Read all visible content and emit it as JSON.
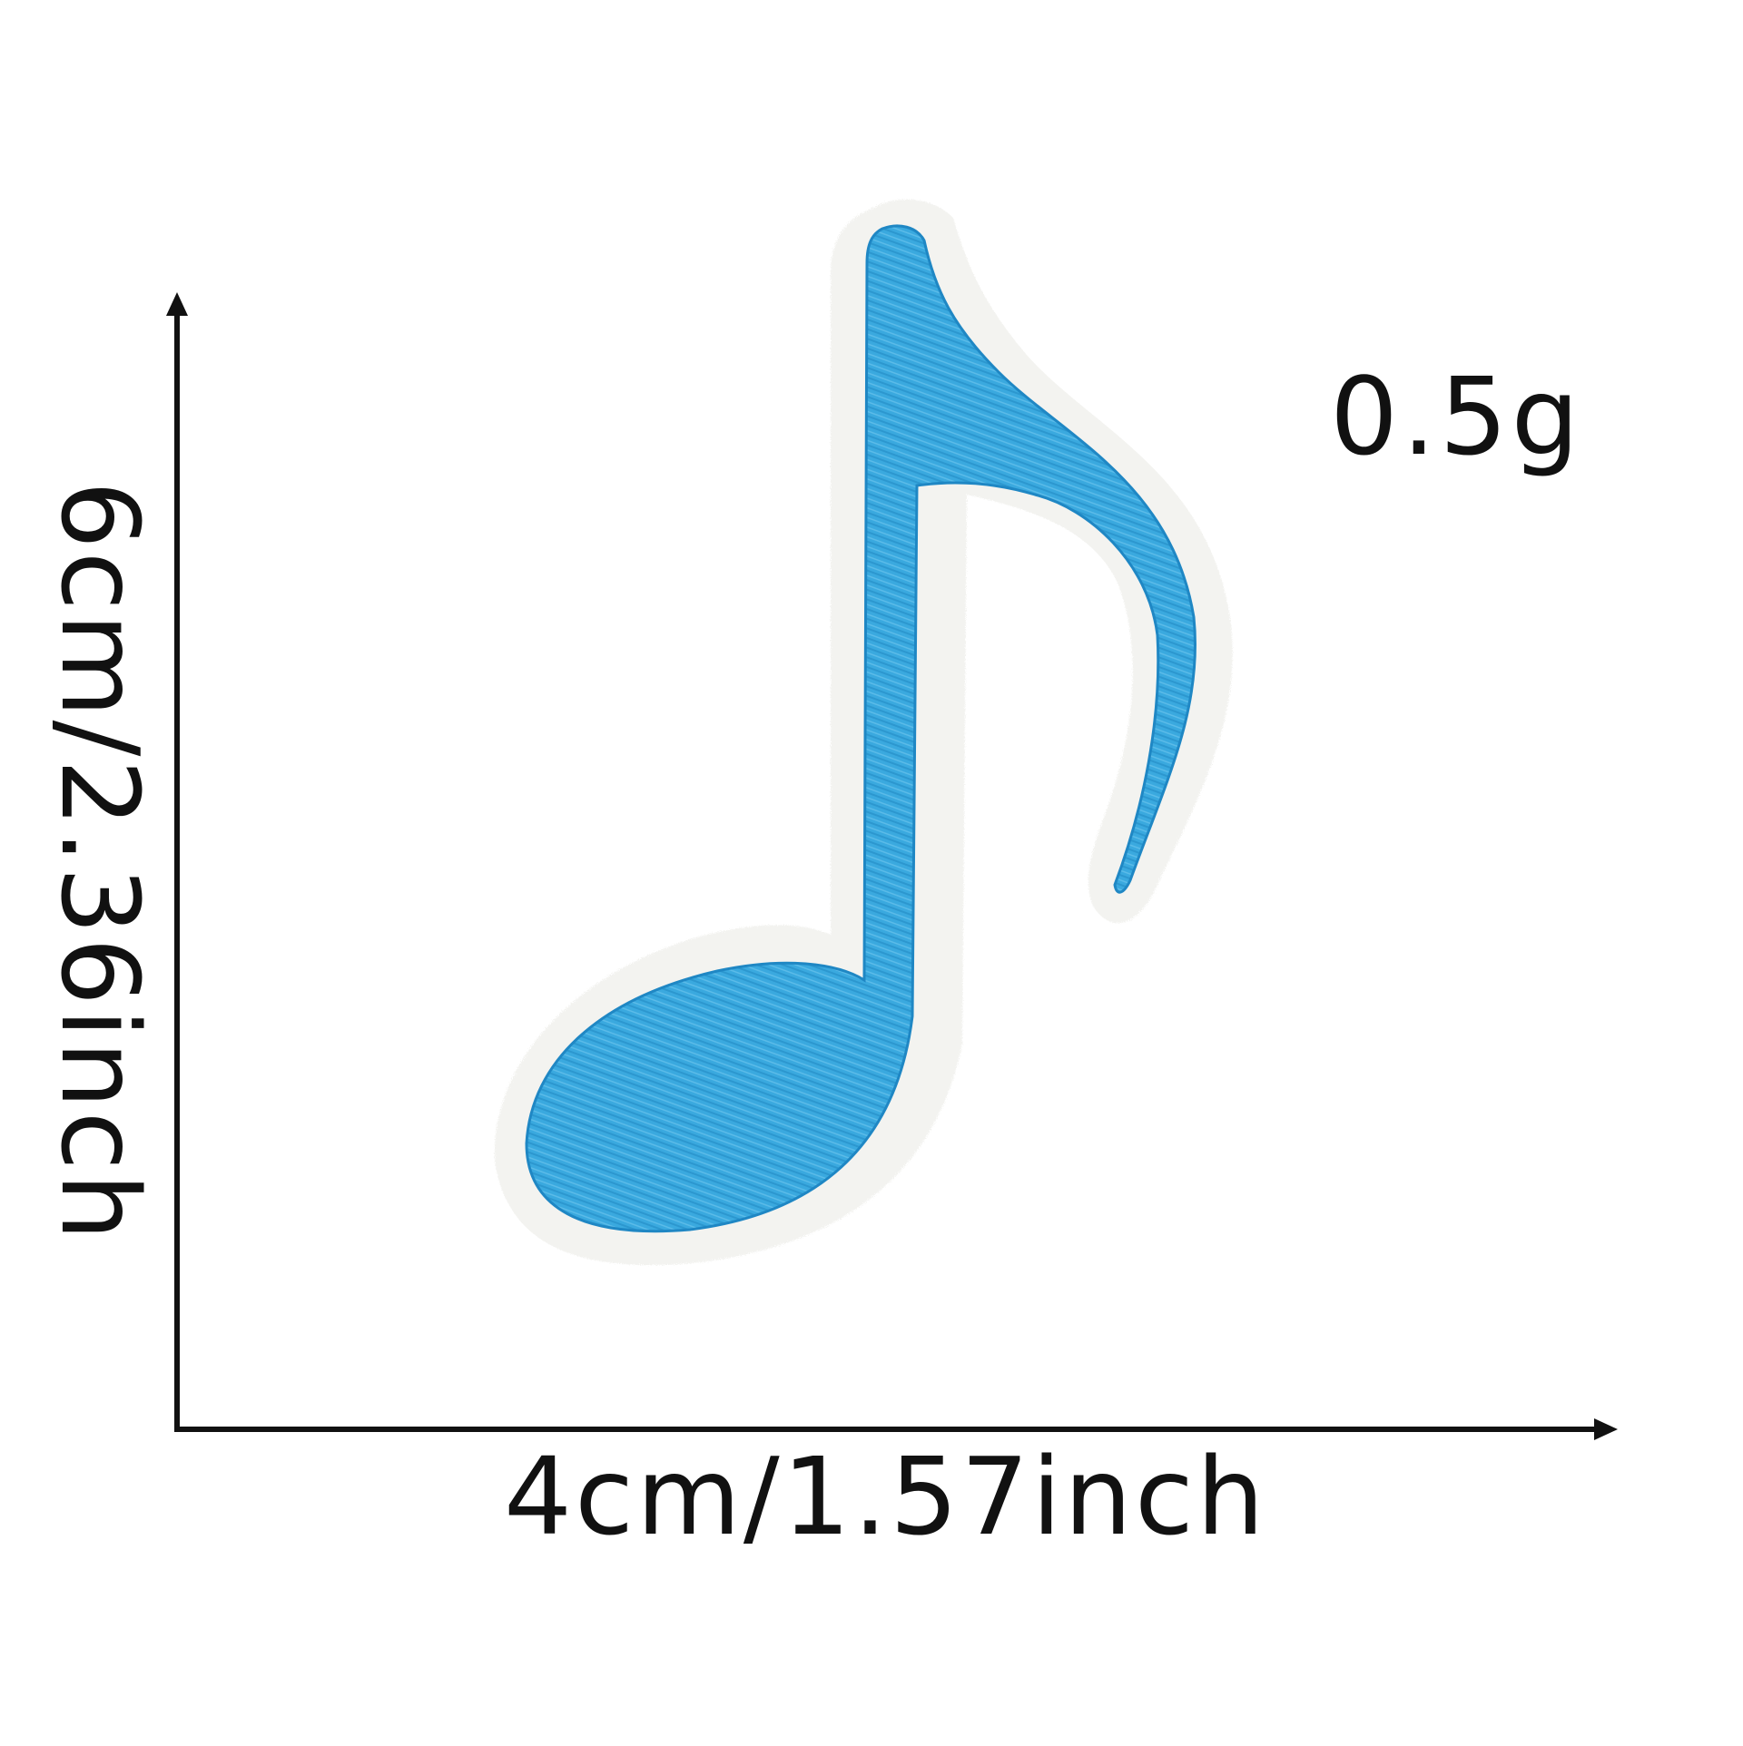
{
  "product": {
    "name_icon": "eighth-note-icon",
    "colors": {
      "embroidery": "#3aa9df",
      "embroidery_shadow": "#1f87c4",
      "felt_border": "#f2f2ef",
      "outline": "#111111"
    }
  },
  "dimensions": {
    "weight": "0.5g",
    "height": "6cm/2.36inch",
    "width": "4cm/1.57inch"
  }
}
